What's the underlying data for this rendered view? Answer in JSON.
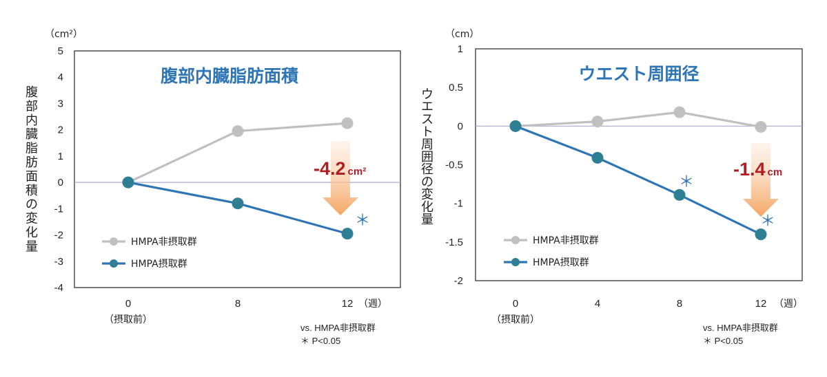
{
  "chart_data": [
    {
      "type": "line",
      "title": "腹部内臓脂肪面積",
      "ylabel": "腹部内臓脂肪面積の変化量",
      "yunit": "（cm²）",
      "ylim": [
        -4,
        5
      ],
      "yticks": [
        5,
        4,
        3,
        2,
        1,
        0,
        -1,
        -2,
        -3,
        -4
      ],
      "x": [
        0,
        8,
        12
      ],
      "xtick_labels": [
        "0",
        "8",
        "12"
      ],
      "xtick_sublabel": "（摂取前）",
      "xunit": "（週）",
      "series": [
        {
          "name": "HMPA非摂取群",
          "color": "#c0c0c0",
          "values": [
            0,
            1.95,
            2.25
          ]
        },
        {
          "name": "HMPA摂取群",
          "color": "#2e75b6",
          "marker": "#2f7f94",
          "values": [
            0,
            -0.8,
            -1.95
          ]
        }
      ],
      "annotation": {
        "value": "-4.2",
        "unit": "cm²"
      },
      "significance": [
        "12"
      ],
      "note_line1": "vs. HMPA非摂取群",
      "note_line2": "＊ P<0.05"
    },
    {
      "type": "line",
      "title": "ウエスト周囲径",
      "ylabel": "ウエスト周囲径の変化量",
      "yunit": "（cm）",
      "ylim": [
        -2,
        1
      ],
      "yticks": [
        1,
        0.5,
        0,
        -0.5,
        -1,
        -1.5,
        -2
      ],
      "x": [
        0,
        4,
        8,
        12
      ],
      "xtick_labels": [
        "0",
        "4",
        "8",
        "12"
      ],
      "xtick_sublabel": "（摂取前）",
      "xunit": "（週）",
      "series": [
        {
          "name": "HMPA非摂取群",
          "color": "#c0c0c0",
          "values": [
            0,
            0.06,
            0.18,
            -0.01
          ]
        },
        {
          "name": "HMPA摂取群",
          "color": "#2e75b6",
          "marker": "#2f7f94",
          "values": [
            0,
            -0.41,
            -0.89,
            -1.4
          ]
        }
      ],
      "annotation": {
        "value": "-1.4",
        "unit": "cm"
      },
      "significance": [
        "8",
        "12"
      ],
      "note_line1": "vs. HMPA非摂取群",
      "note_line2": "＊ P<0.05"
    }
  ]
}
